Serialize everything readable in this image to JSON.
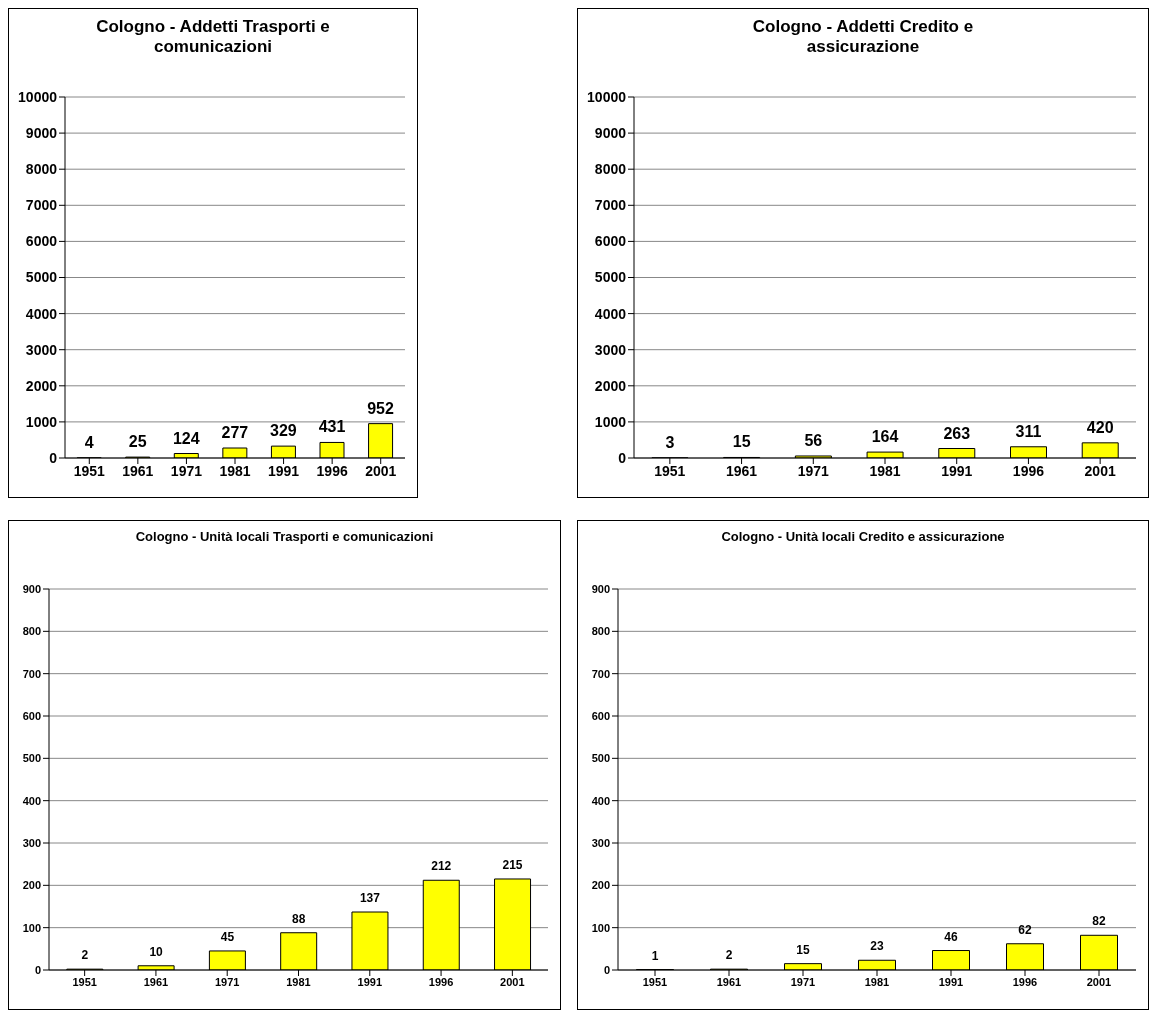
{
  "chart_data": [
    {
      "type": "bar",
      "title": "Cologno - Addetti Trasporti e comunicazioni",
      "categories": [
        "1951",
        "1961",
        "1971",
        "1981",
        "1991",
        "1996",
        "2001"
      ],
      "values": [
        4,
        25,
        124,
        277,
        329,
        431,
        952
      ],
      "color": "#ffff00",
      "ylim": [
        0,
        10000
      ],
      "yticks": [
        0,
        1000,
        2000,
        3000,
        4000,
        5000,
        6000,
        7000,
        8000,
        9000,
        10000
      ],
      "grid": "y",
      "data_labels": true,
      "legend": false
    },
    {
      "type": "bar",
      "title": "Cologno - Addetti Credito e assicurazione",
      "categories": [
        "1951",
        "1961",
        "1971",
        "1981",
        "1991",
        "1996",
        "2001"
      ],
      "values": [
        3,
        15,
        56,
        164,
        263,
        311,
        420
      ],
      "color": "#ffff00",
      "ylim": [
        0,
        10000
      ],
      "yticks": [
        0,
        1000,
        2000,
        3000,
        4000,
        5000,
        6000,
        7000,
        8000,
        9000,
        10000
      ],
      "grid": "y",
      "data_labels": true,
      "legend": false
    },
    {
      "type": "bar",
      "title": "Cologno - Unità locali Trasporti e comunicazioni",
      "categories": [
        "1951",
        "1961",
        "1971",
        "1981",
        "1991",
        "1996",
        "2001"
      ],
      "values": [
        2,
        10,
        45,
        88,
        137,
        212,
        215
      ],
      "color": "#ffff00",
      "ylim": [
        0,
        900
      ],
      "yticks": [
        0,
        100,
        200,
        300,
        400,
        500,
        600,
        700,
        800,
        900
      ],
      "grid": "y",
      "data_labels": true,
      "legend": false
    },
    {
      "type": "bar",
      "title": "Cologno - Unità locali Credito e assicurazione",
      "categories": [
        "1951",
        "1961",
        "1971",
        "1981",
        "1991",
        "1996",
        "2001"
      ],
      "values": [
        1,
        2,
        15,
        23,
        46,
        62,
        82
      ],
      "color": "#ffff00",
      "ylim": [
        0,
        900
      ],
      "yticks": [
        0,
        100,
        200,
        300,
        400,
        500,
        600,
        700,
        800,
        900
      ],
      "grid": "y",
      "data_labels": true,
      "legend": false
    }
  ]
}
